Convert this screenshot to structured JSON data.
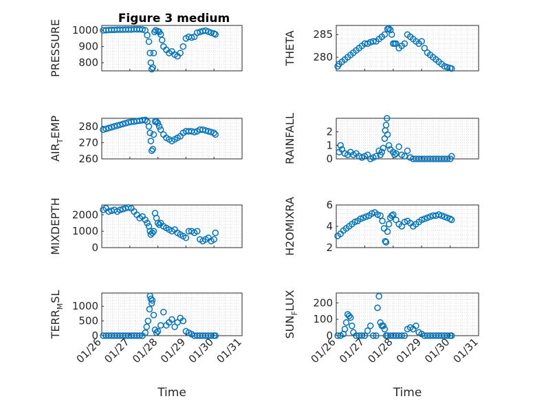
{
  "figure": {
    "title": "Figure 3 medium"
  },
  "colors": {
    "marker": "#0072BD",
    "axis": "#262626",
    "grid": "#dcdcdc"
  },
  "x_axis": {
    "label": "Time",
    "ticks": [
      "01/26",
      "01/27",
      "01/28",
      "01/29",
      "01/30",
      "01/31"
    ],
    "range_days": [
      0,
      5
    ]
  },
  "chart_data": [
    {
      "type": "scatter",
      "ylabel": "PRESSURE",
      "ylim": [
        750,
        1030
      ],
      "yticks": [
        800,
        900,
        1000
      ],
      "grid": true,
      "x_days": [
        0.05,
        0.15,
        0.25,
        0.35,
        0.45,
        0.55,
        0.65,
        0.75,
        0.85,
        0.95,
        1.05,
        1.15,
        1.25,
        1.35,
        1.45,
        1.55,
        1.62,
        1.68,
        1.72,
        1.75,
        1.78,
        1.82,
        1.85,
        1.88,
        1.92,
        2.0,
        2.05,
        2.1,
        2.15,
        2.2,
        2.3,
        2.4,
        2.5,
        2.6,
        2.7,
        2.8,
        2.9,
        3.0,
        3.1,
        3.2,
        3.3,
        3.4,
        3.5,
        3.6,
        3.7,
        3.8,
        3.9,
        4.0,
        4.05
      ],
      "values": [
        1000,
        1001,
        1002,
        1003,
        1003,
        1004,
        1004,
        1004,
        1005,
        1005,
        1005,
        1006,
        1006,
        1006,
        1005,
        1000,
        970,
        930,
        860,
        800,
        760,
        770,
        860,
        990,
        1000,
        995,
        990,
        975,
        940,
        900,
        880,
        860,
        870,
        850,
        840,
        860,
        900,
        950,
        960,
        955,
        960,
        985,
        990,
        995,
        998,
        992,
        985,
        980,
        975
      ]
    },
    {
      "type": "scatter",
      "ylabel": "THETA",
      "ylim": [
        277,
        287
      ],
      "yticks": [
        280,
        285
      ],
      "grid": true,
      "x_days": [
        0.05,
        0.1,
        0.2,
        0.3,
        0.4,
        0.5,
        0.6,
        0.7,
        0.8,
        0.9,
        1.0,
        1.1,
        1.2,
        1.3,
        1.4,
        1.5,
        1.6,
        1.7,
        1.8,
        1.85,
        1.9,
        1.95,
        2.0,
        2.05,
        2.1,
        2.2,
        2.3,
        2.4,
        2.5,
        2.6,
        2.7,
        2.8,
        2.9,
        3.0,
        3.1,
        3.2,
        3.3,
        3.4,
        3.5,
        3.6,
        3.7,
        3.8,
        3.9,
        4.0,
        4.05
      ],
      "values": [
        278,
        278.5,
        279,
        279.5,
        280,
        280.5,
        281,
        281.5,
        282,
        282.5,
        283,
        283,
        283.3,
        283.5,
        283.5,
        284,
        284.5,
        285,
        286.2,
        286.3,
        286,
        285,
        283,
        283,
        283,
        282,
        282.5,
        283,
        285,
        284.5,
        284,
        283.5,
        283,
        283.5,
        282,
        281,
        280.5,
        280,
        279.5,
        279,
        278.5,
        278,
        277.8,
        277.6,
        277.5
      ]
    },
    {
      "type": "scatter",
      "ylabel": "AIR_TEMP",
      "ylim": [
        260,
        285
      ],
      "yticks": [
        260,
        270,
        280
      ],
      "grid": true,
      "x_days": [
        0.05,
        0.15,
        0.25,
        0.35,
        0.45,
        0.55,
        0.65,
        0.75,
        0.85,
        0.95,
        1.05,
        1.15,
        1.25,
        1.35,
        1.45,
        1.55,
        1.62,
        1.68,
        1.72,
        1.75,
        1.78,
        1.82,
        1.85,
        1.9,
        1.95,
        2.0,
        2.05,
        2.1,
        2.2,
        2.3,
        2.4,
        2.5,
        2.6,
        2.7,
        2.8,
        2.9,
        3.0,
        3.1,
        3.2,
        3.3,
        3.4,
        3.5,
        3.6,
        3.7,
        3.8,
        3.9,
        4.0,
        4.05
      ],
      "values": [
        278,
        278.5,
        279,
        279.5,
        280,
        280.5,
        281,
        281.5,
        282,
        282.5,
        282.8,
        283,
        283.3,
        283.5,
        283.8,
        284,
        283,
        280,
        276,
        271,
        265,
        266,
        275,
        283,
        283,
        282,
        280,
        278,
        275,
        273,
        272,
        271,
        272,
        273,
        274,
        276,
        277,
        277,
        277,
        276.5,
        277,
        278,
        278,
        277.5,
        277,
        276.5,
        276,
        275
      ]
    },
    {
      "type": "scatter",
      "ylabel": "RAINFALL",
      "ylim": [
        0,
        3
      ],
      "yticks": [
        0,
        1,
        2
      ],
      "grid": true,
      "x_days": [
        0.1,
        0.15,
        0.2,
        0.3,
        0.4,
        0.5,
        0.6,
        0.7,
        0.8,
        0.9,
        1.0,
        1.1,
        1.2,
        1.3,
        1.4,
        1.5,
        1.55,
        1.6,
        1.65,
        1.7,
        1.72,
        1.75,
        1.78,
        1.8,
        1.85,
        1.9,
        2.0,
        2.05,
        2.1,
        2.2,
        2.3,
        2.4,
        2.5,
        2.6,
        2.7,
        2.8,
        2.9,
        3.0,
        3.1,
        3.2,
        3.3,
        3.4,
        3.5,
        3.6,
        3.7,
        3.8,
        3.9,
        4.0,
        4.05
      ],
      "values": [
        0.5,
        1.0,
        0.7,
        0.4,
        0.3,
        0.5,
        0.3,
        0.4,
        0.2,
        0.1,
        0.2,
        0.3,
        0.0,
        0.1,
        0.2,
        0.6,
        0.3,
        0.5,
        0.8,
        1.5,
        2.1,
        2.5,
        3.0,
        1.8,
        1.0,
        0.7,
        0.5,
        0.3,
        0.4,
        0.9,
        0.3,
        0.2,
        0.6,
        0.1,
        0.0,
        0.0,
        0.0,
        0.0,
        0.0,
        0.0,
        0.0,
        0.0,
        0.0,
        0.0,
        0.0,
        0.0,
        0.0,
        0.0,
        0.2
      ]
    },
    {
      "type": "scatter",
      "ylabel": "MIXDEPTH",
      "ylim": [
        0,
        2600
      ],
      "yticks": [
        0,
        1000,
        2000
      ],
      "grid": true,
      "x_days": [
        0.05,
        0.15,
        0.25,
        0.35,
        0.45,
        0.55,
        0.65,
        0.75,
        0.85,
        0.95,
        1.05,
        1.15,
        1.25,
        1.35,
        1.45,
        1.55,
        1.62,
        1.68,
        1.72,
        1.75,
        1.8,
        1.85,
        1.9,
        1.95,
        2.0,
        2.05,
        2.1,
        2.2,
        2.3,
        2.4,
        2.5,
        2.6,
        2.7,
        2.8,
        2.9,
        3.0,
        3.1,
        3.2,
        3.3,
        3.4,
        3.5,
        3.6,
        3.7,
        3.8,
        3.9,
        4.0,
        4.05
      ],
      "values": [
        2300,
        2400,
        2200,
        2250,
        2300,
        2200,
        2300,
        2350,
        2400,
        2450,
        2400,
        2200,
        2000,
        1800,
        1900,
        1700,
        1500,
        1300,
        1000,
        800,
        900,
        1000,
        2100,
        1800,
        1500,
        1400,
        1500,
        1300,
        1200,
        1100,
        1000,
        1100,
        900,
        800,
        700,
        600,
        1000,
        1000,
        900,
        1000,
        500,
        400,
        500,
        600,
        400,
        500,
        900
      ]
    },
    {
      "type": "scatter",
      "ylabel": "H2OMIXRA",
      "ylim": [
        2,
        6
      ],
      "yticks": [
        2,
        4,
        6
      ],
      "grid": true,
      "x_days": [
        0.05,
        0.15,
        0.25,
        0.35,
        0.45,
        0.55,
        0.65,
        0.75,
        0.85,
        0.95,
        1.05,
        1.15,
        1.25,
        1.35,
        1.45,
        1.55,
        1.62,
        1.68,
        1.72,
        1.75,
        1.8,
        1.85,
        1.9,
        1.95,
        2.0,
        2.1,
        2.2,
        2.3,
        2.4,
        2.5,
        2.6,
        2.7,
        2.8,
        2.9,
        3.0,
        3.1,
        3.2,
        3.3,
        3.4,
        3.5,
        3.6,
        3.7,
        3.8,
        3.9,
        4.0,
        4.05
      ],
      "values": [
        3.1,
        3.3,
        3.6,
        3.8,
        4.0,
        4.2,
        4.4,
        4.5,
        4.7,
        4.8,
        4.9,
        5.0,
        5.2,
        5.3,
        5.1,
        5.0,
        4.5,
        3.8,
        2.6,
        2.5,
        3.5,
        4.2,
        4.8,
        5.0,
        5.1,
        4.6,
        4.2,
        4.0,
        4.4,
        4.5,
        4.3,
        4.0,
        4.2,
        4.4,
        4.6,
        4.7,
        4.8,
        4.9,
        5.0,
        5.0,
        5.1,
        5.0,
        4.9,
        4.8,
        4.7,
        4.6
      ]
    },
    {
      "type": "scatter",
      "ylabel": "TERR_MSL",
      "ylim": [
        0,
        1450
      ],
      "yticks": [
        0,
        500,
        1000
      ],
      "grid": true,
      "x_days": [
        0.05,
        0.15,
        0.25,
        0.35,
        0.45,
        0.55,
        0.65,
        0.75,
        0.85,
        0.95,
        1.05,
        1.15,
        1.25,
        1.35,
        1.45,
        1.55,
        1.6,
        1.65,
        1.7,
        1.72,
        1.75,
        1.78,
        1.8,
        1.85,
        1.9,
        1.95,
        2.0,
        2.1,
        2.2,
        2.3,
        2.4,
        2.5,
        2.6,
        2.7,
        2.8,
        2.9,
        3.0,
        3.1,
        3.2,
        3.3,
        3.4,
        3.5,
        3.6,
        3.7,
        3.8,
        3.9,
        4.0,
        4.05
      ],
      "values": [
        0,
        0,
        0,
        0,
        0,
        0,
        0,
        0,
        0,
        0,
        0,
        0,
        0,
        0,
        0,
        100,
        300,
        500,
        900,
        1350,
        1250,
        1100,
        1200,
        700,
        200,
        100,
        150,
        350,
        800,
        350,
        450,
        550,
        300,
        450,
        600,
        500,
        150,
        100,
        50,
        0,
        0,
        0,
        0,
        0,
        0,
        0,
        0,
        0
      ]
    },
    {
      "type": "scatter",
      "ylabel": "SUN_FLUX",
      "ylim": [
        0,
        260
      ],
      "yticks": [
        0,
        100,
        200
      ],
      "grid": true,
      "x_days": [
        0.05,
        0.15,
        0.25,
        0.3,
        0.35,
        0.4,
        0.45,
        0.5,
        0.55,
        0.6,
        0.7,
        0.8,
        0.9,
        1.0,
        1.1,
        1.2,
        1.3,
        1.4,
        1.45,
        1.5,
        1.55,
        1.6,
        1.65,
        1.7,
        1.75,
        1.8,
        1.9,
        2.0,
        2.1,
        2.2,
        2.3,
        2.4,
        2.5,
        2.6,
        2.7,
        2.8,
        2.9,
        3.0,
        3.1,
        3.2,
        3.3,
        3.4,
        3.5,
        3.6,
        3.7,
        3.8,
        3.9,
        4.0,
        4.05
      ],
      "values": [
        0,
        0,
        10,
        40,
        80,
        130,
        120,
        110,
        60,
        20,
        0,
        0,
        0,
        0,
        30,
        60,
        0,
        0,
        170,
        240,
        80,
        60,
        60,
        40,
        0,
        0,
        0,
        0,
        0,
        0,
        0,
        0,
        40,
        50,
        40,
        60,
        20,
        10,
        0,
        0,
        0,
        0,
        0,
        0,
        0,
        0,
        0,
        0,
        0
      ]
    }
  ]
}
